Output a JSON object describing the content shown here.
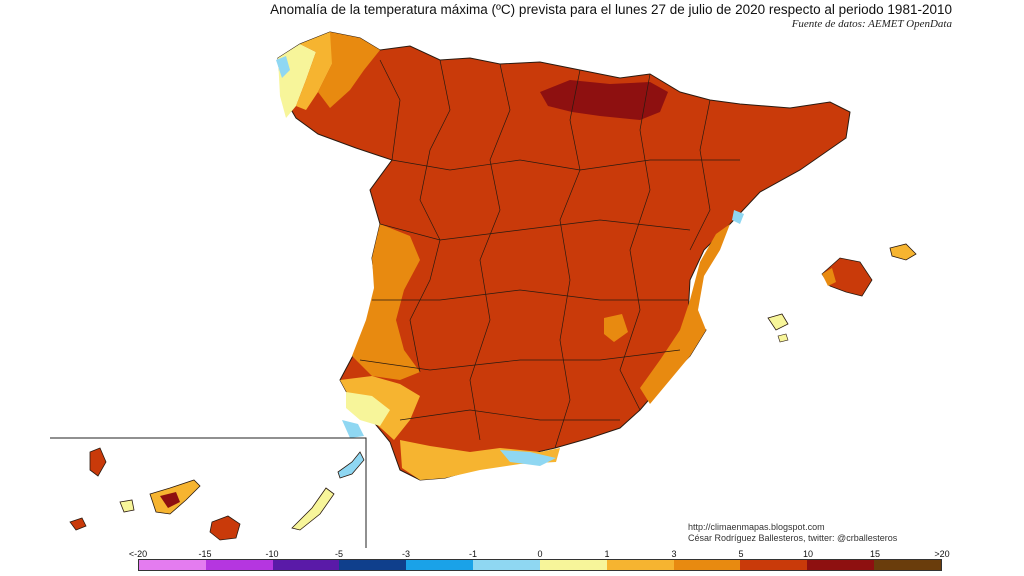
{
  "title": "Anomalía de la temperatura máxima (ºC) prevista para el lunes 27 de julio de 2020 respecto al periodo 1981-2010",
  "source": "Fuente de datos: AEMET OpenData",
  "credits": {
    "url": "http://climaenmapas.blogspot.com",
    "author": "César Rodríguez Ballesteros, twitter: @crballesteros"
  },
  "legend": {
    "labels": [
      "<-20",
      "-15",
      "-10",
      "-5",
      "-3",
      "-1",
      "0",
      "1",
      "3",
      "5",
      "10",
      "15",
      ">20"
    ],
    "colors": [
      "#e47cf0",
      "#b536e0",
      "#5a1aa8",
      "#0f3f8c",
      "#1aa2e8",
      "#8fd7f2",
      "#ffffff",
      "#f7f59a",
      "#f6b430",
      "#e88a10",
      "#c93a0a",
      "#8e1010",
      "#6a3d0c"
    ]
  },
  "map_colors": {
    "extreme": "#8e1010",
    "very_high": "#c93a0a",
    "high": "#e88a10",
    "moderate": "#f6b430",
    "mild": "#f7f59a",
    "cool": "#8fd7f2",
    "cold": "#1aa2e8"
  }
}
